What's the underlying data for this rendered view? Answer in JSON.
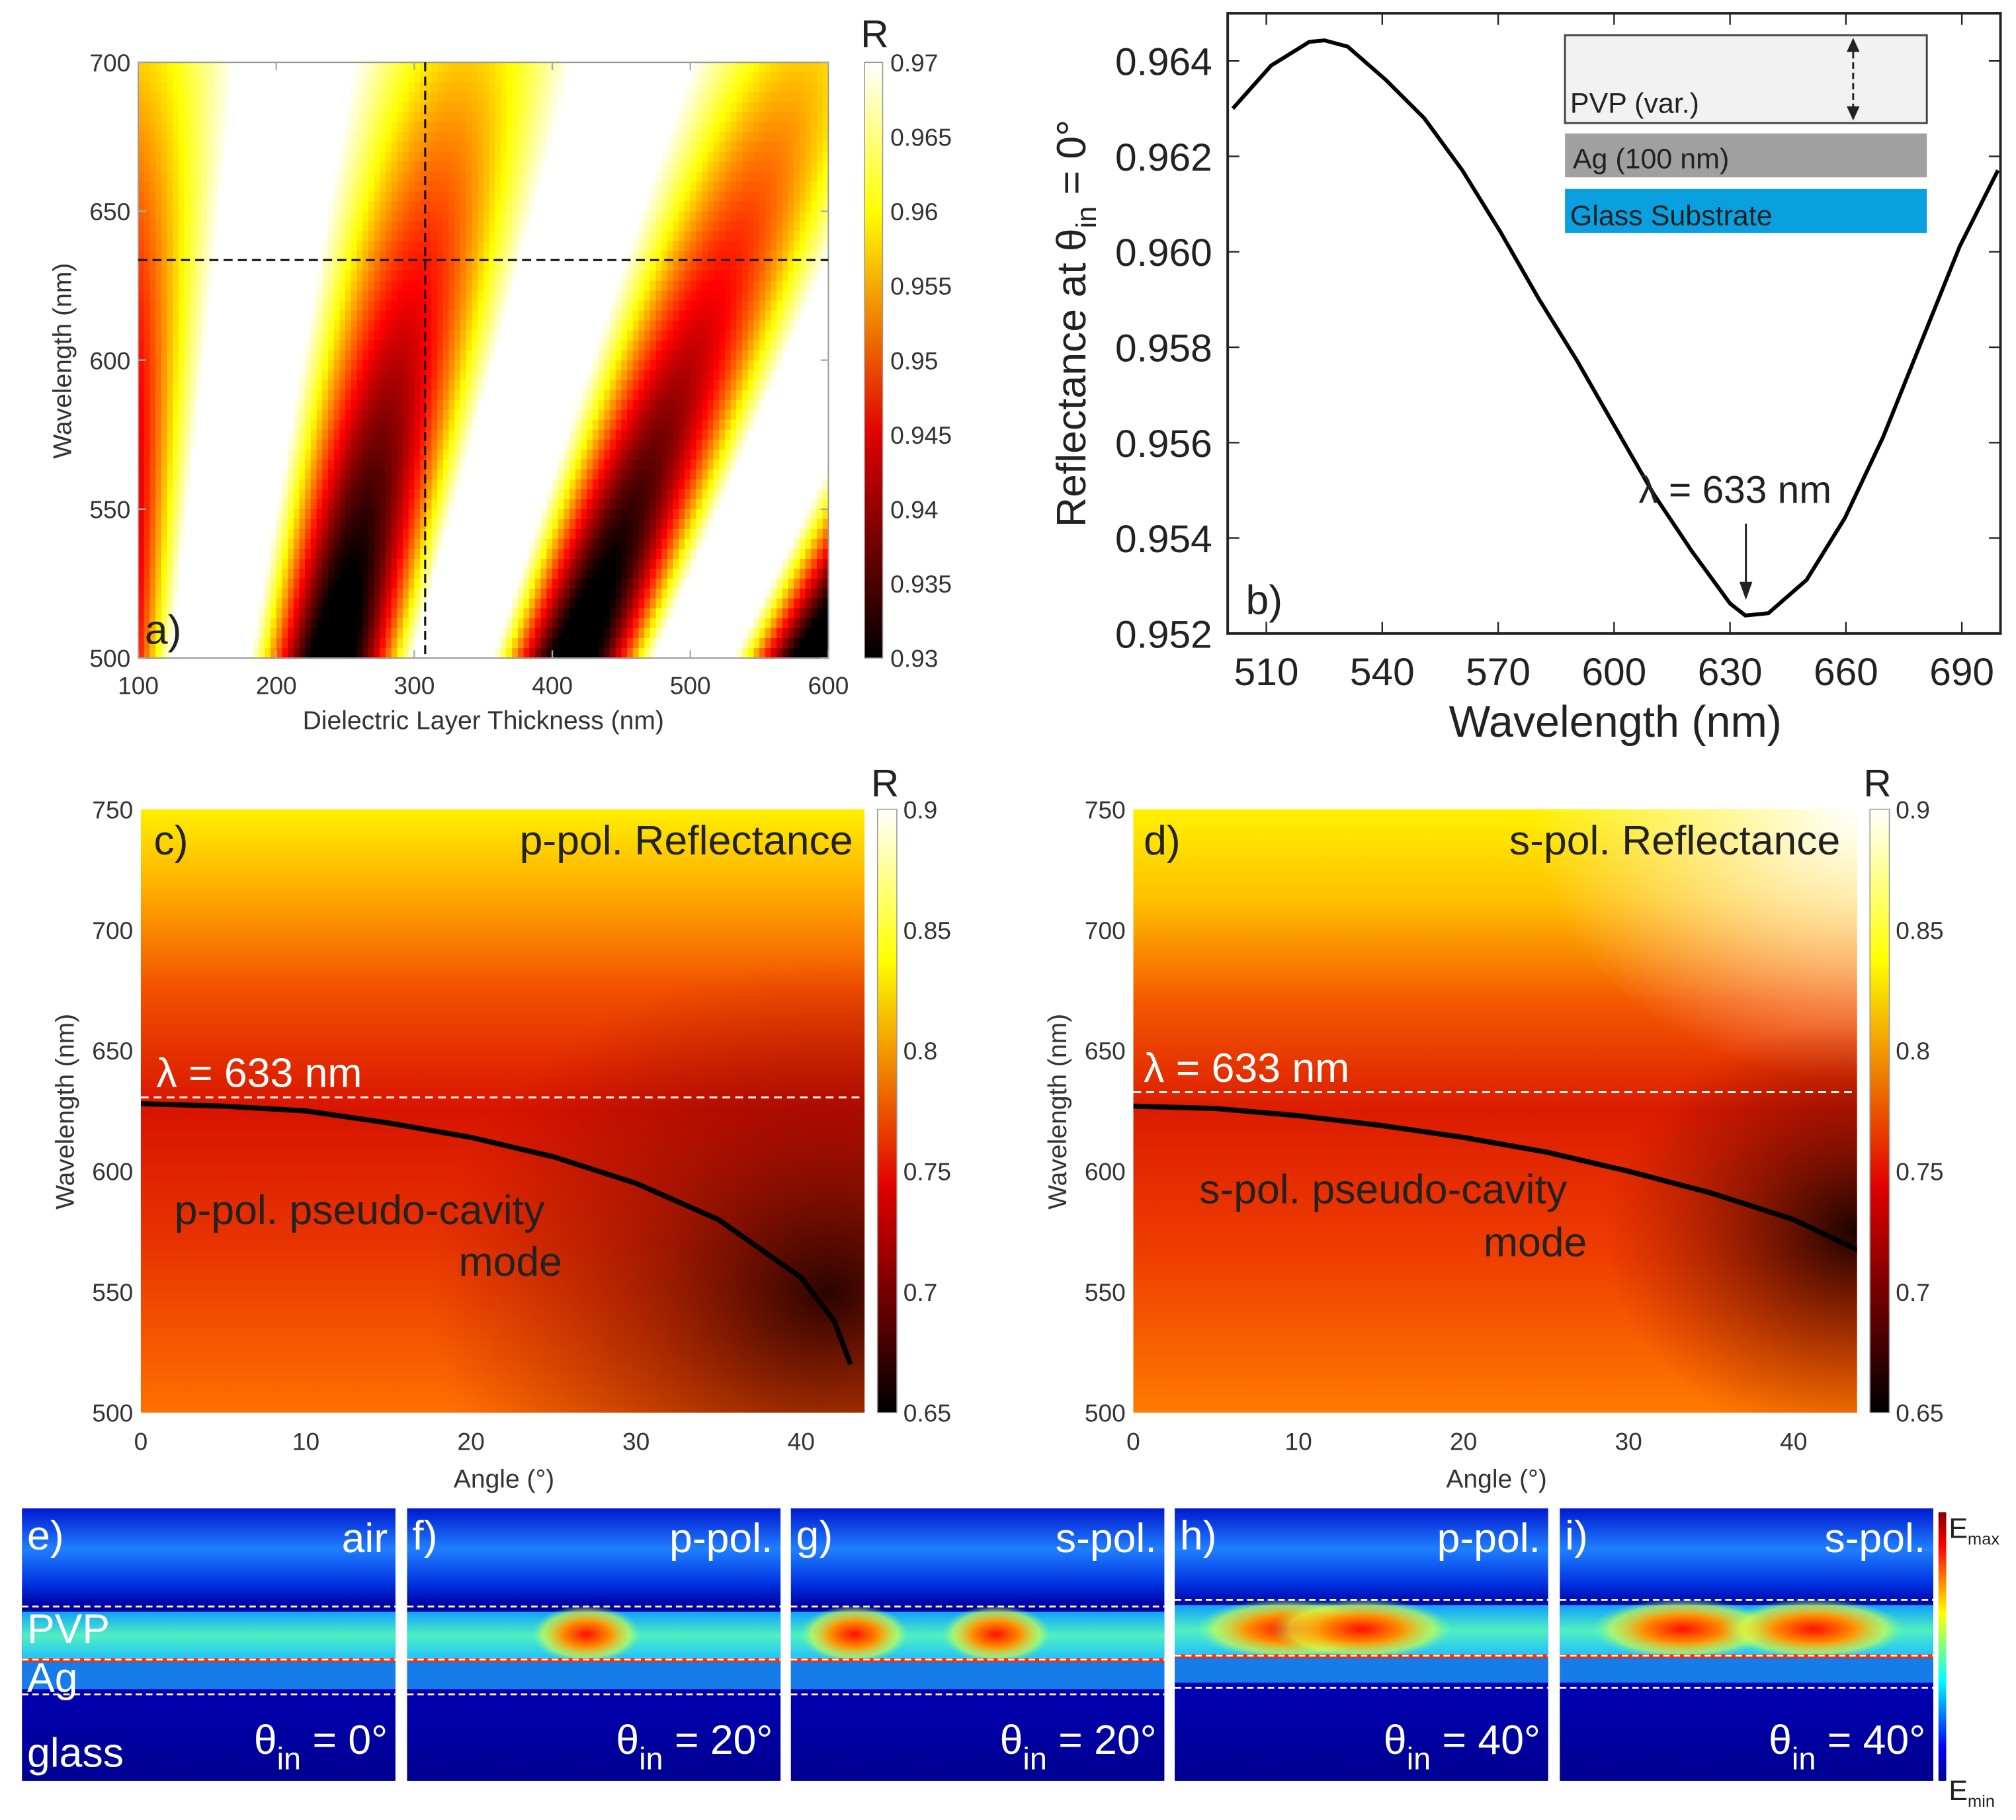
{
  "chart_data": [
    {
      "panel": "a",
      "type": "heatmap",
      "panel_label": "a)",
      "xlabel": "Dielectric Layer Thickness (nm)",
      "ylabel": "Wavelength (nm)",
      "xlim": [
        100,
        600
      ],
      "ylim": [
        500,
        700
      ],
      "xticks": [
        "100",
        "200",
        "300",
        "400",
        "500",
        "600"
      ],
      "yticks": [
        "500",
        "550",
        "600",
        "650",
        "700"
      ],
      "colorbar": {
        "title": "R",
        "range": [
          0.93,
          0.97
        ],
        "ticks": [
          "0.93",
          "0.935",
          "0.94",
          "0.945",
          "0.95",
          "0.955",
          "0.96",
          "0.965",
          "0.97"
        ],
        "colormap": "hot"
      },
      "guides": {
        "thickness_nm": 310,
        "wavelength_nm": 633
      },
      "description_values": {
        "dark_bands_at_500nm_thickness": [
          240,
          415,
          590
        ]
      }
    },
    {
      "panel": "b",
      "type": "line",
      "panel_label": "b)",
      "xlabel": "Wavelength (nm)",
      "ylabel_main": "Reflectance at θ",
      "ylabel_sub": "in",
      "ylabel_end": " = 0°",
      "xlim": [
        500,
        700
      ],
      "ylim": [
        0.952,
        0.965
      ],
      "xticks": [
        "510",
        "540",
        "570",
        "600",
        "630",
        "660",
        "690"
      ],
      "yticks": [
        "0.952",
        "0.954",
        "0.956",
        "0.958",
        "0.960",
        "0.962",
        "0.964"
      ],
      "x": [
        500,
        510,
        520,
        524,
        530,
        540,
        550,
        560,
        570,
        580,
        590,
        600,
        610,
        620,
        630,
        634,
        640,
        650,
        660,
        670,
        680,
        690,
        700
      ],
      "y": [
        0.963,
        0.9639,
        0.9644,
        0.96443,
        0.9643,
        0.9636,
        0.9628,
        0.9617,
        0.9604,
        0.959,
        0.9577,
        0.9563,
        0.9549,
        0.9537,
        0.9526,
        0.95235,
        0.9524,
        0.9531,
        0.9544,
        0.9561,
        0.9581,
        0.9601,
        0.9617
      ],
      "annotation": "λ = 633 nm",
      "annotation_x": 633,
      "inset": {
        "pvp": "PVP (var.)",
        "ag": "Ag (100 nm)",
        "glass": "Glass Substrate",
        "glass_color": "#0aa0e0",
        "ag_color": "#a0a0a0",
        "pvp_color": "#f2f2f2"
      }
    },
    {
      "panel": "c",
      "type": "heatmap",
      "panel_label": "c)",
      "title": "p-pol. Reflectance",
      "xlabel": "Angle (°)",
      "ylabel": "Wavelength (nm)",
      "xlim": [
        0,
        44
      ],
      "ylim": [
        500,
        750
      ],
      "xticks": [
        "0",
        "10",
        "20",
        "30",
        "40"
      ],
      "yticks": [
        "500",
        "550",
        "600",
        "650",
        "700",
        "750"
      ],
      "colorbar": {
        "title": "R",
        "range": [
          0.65,
          0.9
        ],
        "ticks": [
          "0.65",
          "0.7",
          "0.75",
          "0.8",
          "0.85",
          "0.9"
        ],
        "colormap": "hot"
      },
      "line_label": "λ = 633 nm",
      "mode_label_1": "p-pol. pseudo-cavity",
      "mode_label_2": "mode",
      "mode_curve": {
        "angle": [
          0,
          5,
          10,
          15,
          20,
          25,
          30,
          35,
          40,
          42,
          43
        ],
        "wavelength": [
          628,
          627,
          625,
          620,
          614,
          606,
          595,
          580,
          556,
          538,
          520
        ]
      }
    },
    {
      "panel": "d",
      "type": "heatmap",
      "panel_label": "d)",
      "title": "s-pol. Reflectance",
      "xlabel": "Angle (°)",
      "ylabel": "Wavelength (nm)",
      "xlim": [
        0,
        44
      ],
      "ylim": [
        500,
        750
      ],
      "xticks": [
        "0",
        "10",
        "20",
        "30",
        "40"
      ],
      "yticks": [
        "500",
        "550",
        "600",
        "650",
        "700",
        "750"
      ],
      "colorbar": {
        "title": "R",
        "range": [
          0.65,
          0.9
        ],
        "ticks": [
          "0.65",
          "0.7",
          "0.75",
          "0.8",
          "0.85",
          "0.9"
        ],
        "colormap": "hot"
      },
      "line_label": "λ = 633 nm",
      "mode_label_1": "s-pol. pseudo-cavity",
      "mode_label_2": "mode",
      "mode_curve": {
        "angle": [
          0,
          5,
          10,
          15,
          20,
          25,
          30,
          35,
          40,
          44
        ],
        "wavelength": [
          627,
          626,
          623,
          619,
          614,
          608,
          600,
          591,
          580,
          567
        ]
      }
    },
    {
      "panel": "e-i",
      "type": "heatmap",
      "colorbar": {
        "max_label": "E",
        "max_sub": "max",
        "min_label": "E",
        "min_sub": "min",
        "colormap": "jet"
      },
      "layers": {
        "air": "air",
        "pvp": "PVP",
        "ag": "Ag",
        "glass": "glass"
      },
      "maps": [
        {
          "label": "e)",
          "pol": "air",
          "theta": "θ",
          "theta_sub": "in",
          "angle": " = 0°",
          "hotspots": []
        },
        {
          "label": "f)",
          "pol": "p-pol.",
          "theta": "θ",
          "theta_sub": "in",
          "angle": " = 20°",
          "hotspots": [
            0.48
          ]
        },
        {
          "label": "g)",
          "pol": "s-pol.",
          "theta": "θ",
          "theta_sub": "in",
          "angle": " = 20°",
          "hotspots": [
            0.17,
            0.55
          ]
        },
        {
          "label": "h)",
          "pol": "p-pol.",
          "theta": "θ",
          "theta_sub": "in",
          "angle": " = 40°",
          "hotspots": [
            0.3,
            0.5
          ]
        },
        {
          "label": "i)",
          "pol": "s-pol.",
          "theta": "θ",
          "theta_sub": "in",
          "angle": " = 40°",
          "hotspots": [
            0.33,
            0.68
          ]
        }
      ]
    }
  ]
}
